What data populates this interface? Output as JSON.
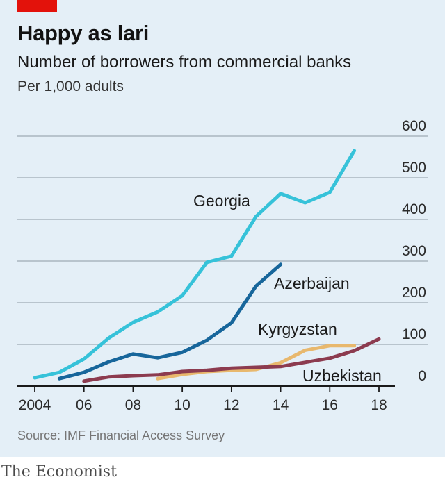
{
  "header": {
    "title": "Happy as lari",
    "subtitle": "Number of borrowers from commercial banks",
    "unit": "Per 1,000 adults"
  },
  "footer": {
    "source": "Source: IMF Financial Access Survey",
    "brand": "The Economist"
  },
  "colors": {
    "background": "#e4eff7",
    "accent": "#e3120b",
    "Georgia": "#36c2d9",
    "Azerbaijan": "#17669b",
    "Kyrgyzstan": "#e8b86d",
    "Uzbekistan": "#8c3b4f"
  },
  "chart_data": {
    "type": "line",
    "title": "Happy as lari",
    "subtitle": "Number of borrowers from commercial banks",
    "ylabel": "Per 1,000 adults",
    "xlim": [
      2004,
      2018
    ],
    "ylim": [
      0,
      600
    ],
    "y_axis_side": "right",
    "grid": true,
    "x_ticks": [
      2004,
      2006,
      2008,
      2010,
      2012,
      2014,
      2016,
      2018
    ],
    "x_tick_labels": [
      "2004",
      "06",
      "08",
      "10",
      "12",
      "14",
      "16",
      "18"
    ],
    "y_ticks": [
      0,
      100,
      200,
      300,
      400,
      500,
      600
    ],
    "y_tick_labels": [
      "0",
      "100",
      "200",
      "300",
      "400",
      "500",
      "600"
    ],
    "legend": "direct labels",
    "series": [
      {
        "name": "Georgia",
        "color": "#36c2d9",
        "x": [
          2004,
          2005,
          2006,
          2007,
          2008,
          2009,
          2010,
          2011,
          2012,
          2013,
          2014,
          2015,
          2016,
          2017
        ],
        "values": [
          20,
          33,
          65,
          115,
          153,
          178,
          217,
          297,
          312,
          407,
          462,
          440,
          465,
          565
        ]
      },
      {
        "name": "Azerbaijan",
        "color": "#17669b",
        "x": [
          2005,
          2006,
          2007,
          2008,
          2009,
          2010,
          2011,
          2012,
          2013,
          2014
        ],
        "values": [
          18,
          33,
          58,
          77,
          68,
          81,
          110,
          152,
          240,
          292
        ]
      },
      {
        "name": "Kyrgyzstan",
        "color": "#e8b86d",
        "x": [
          2009,
          2010,
          2011,
          2012,
          2013,
          2014,
          2015,
          2016,
          2017
        ],
        "values": [
          18,
          28,
          35,
          38,
          40,
          56,
          86,
          97,
          97
        ]
      },
      {
        "name": "Uzbekistan",
        "color": "#8c3b4f",
        "x": [
          2006,
          2007,
          2008,
          2009,
          2010,
          2011,
          2012,
          2013,
          2014,
          2015,
          2016,
          2017,
          2018
        ],
        "values": [
          12,
          22,
          25,
          27,
          35,
          38,
          43,
          45,
          47,
          57,
          67,
          85,
          113
        ]
      }
    ]
  }
}
